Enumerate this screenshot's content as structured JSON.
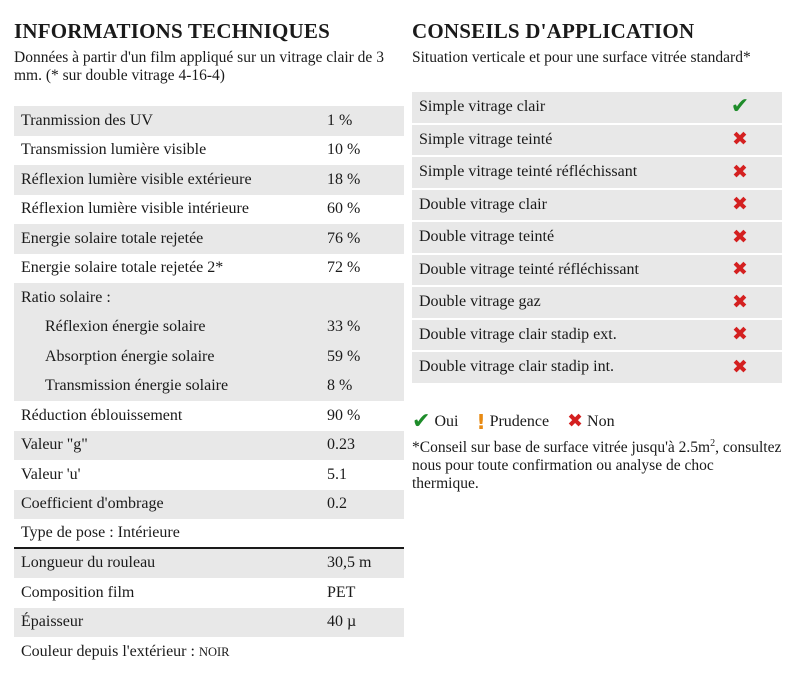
{
  "tech": {
    "title": "INFORMATIONS TECHNIQUES",
    "subtitle": "Données à partir d'un film appliqué sur un vitrage clair de 3 mm. (* sur double vitrage 4-16-4)",
    "rows": [
      {
        "label": "Tranmission des UV",
        "value": "1 %"
      },
      {
        "label": "Transmission lumière visible",
        "value": "10 %"
      },
      {
        "label": "Réflexion lumière visible extérieure",
        "value": "18 %"
      },
      {
        "label": "Réflexion lumière visible intérieure",
        "value": "60 %"
      },
      {
        "label": "Energie solaire totale rejetée",
        "value": "76 %"
      },
      {
        "label": "Energie solaire totale rejetée 2*",
        "value": "72 %"
      },
      {
        "label": "Ratio solaire :",
        "value": ""
      },
      {
        "label": "Réflexion énergie solaire",
        "value": "33 %"
      },
      {
        "label": "Absorption énergie solaire",
        "value": "59 %"
      },
      {
        "label": "Transmission énergie solaire",
        "value": "8 %"
      },
      {
        "label": "Réduction éblouissement",
        "value": "90 %"
      },
      {
        "label": "Valeur \"g\"",
        "value": "0.23"
      },
      {
        "label": "Valeur 'u'",
        "value": "5.1"
      },
      {
        "label": "Coefficient d'ombrage",
        "value": "0.2"
      },
      {
        "label": "Type de pose : Intérieure",
        "value": ""
      },
      {
        "label": "Longueur du rouleau",
        "value": "30,5 m"
      },
      {
        "label": "Composition film",
        "value": "PET"
      },
      {
        "label": "Épaisseur",
        "value": "40 µ"
      }
    ],
    "colour_label": "Couleur depuis l'extérieur : ",
    "colour_value": "NOIR"
  },
  "advice": {
    "title": "CONSEILS D'APPLICATION",
    "subtitle": "Situation verticale et pour une surface vitrée standard*",
    "rows": [
      {
        "label": "Simple vitrage clair",
        "status": "oui"
      },
      {
        "label": "Simple vitrage teinté",
        "status": "non"
      },
      {
        "label": "Simple vitrage teinté réfléchissant",
        "status": "non"
      },
      {
        "label": "Double vitrage clair",
        "status": "non"
      },
      {
        "label": "Double vitrage teinté",
        "status": "non"
      },
      {
        "label": "Double vitrage teinté réfléchissant",
        "status": "non"
      },
      {
        "label": "Double vitrage gaz",
        "status": "non"
      },
      {
        "label": "Double vitrage clair stadip ext.",
        "status": "non"
      },
      {
        "label": "Double vitrage clair stadip int.",
        "status": "non"
      }
    ],
    "legend": {
      "oui": "Oui",
      "prudence": "Prudence",
      "non": "Non"
    },
    "note_before_sup": "*Conseil sur base de surface vitrée jusqu'à 2.5m",
    "note_sup": "2",
    "note_after_sup": ", consultez nous pour toute confirmation ou analyse de choc thermique.",
    "colors": {
      "oui": "#1e8c2a",
      "prudence": "#e88a12",
      "non": "#d42020"
    }
  }
}
